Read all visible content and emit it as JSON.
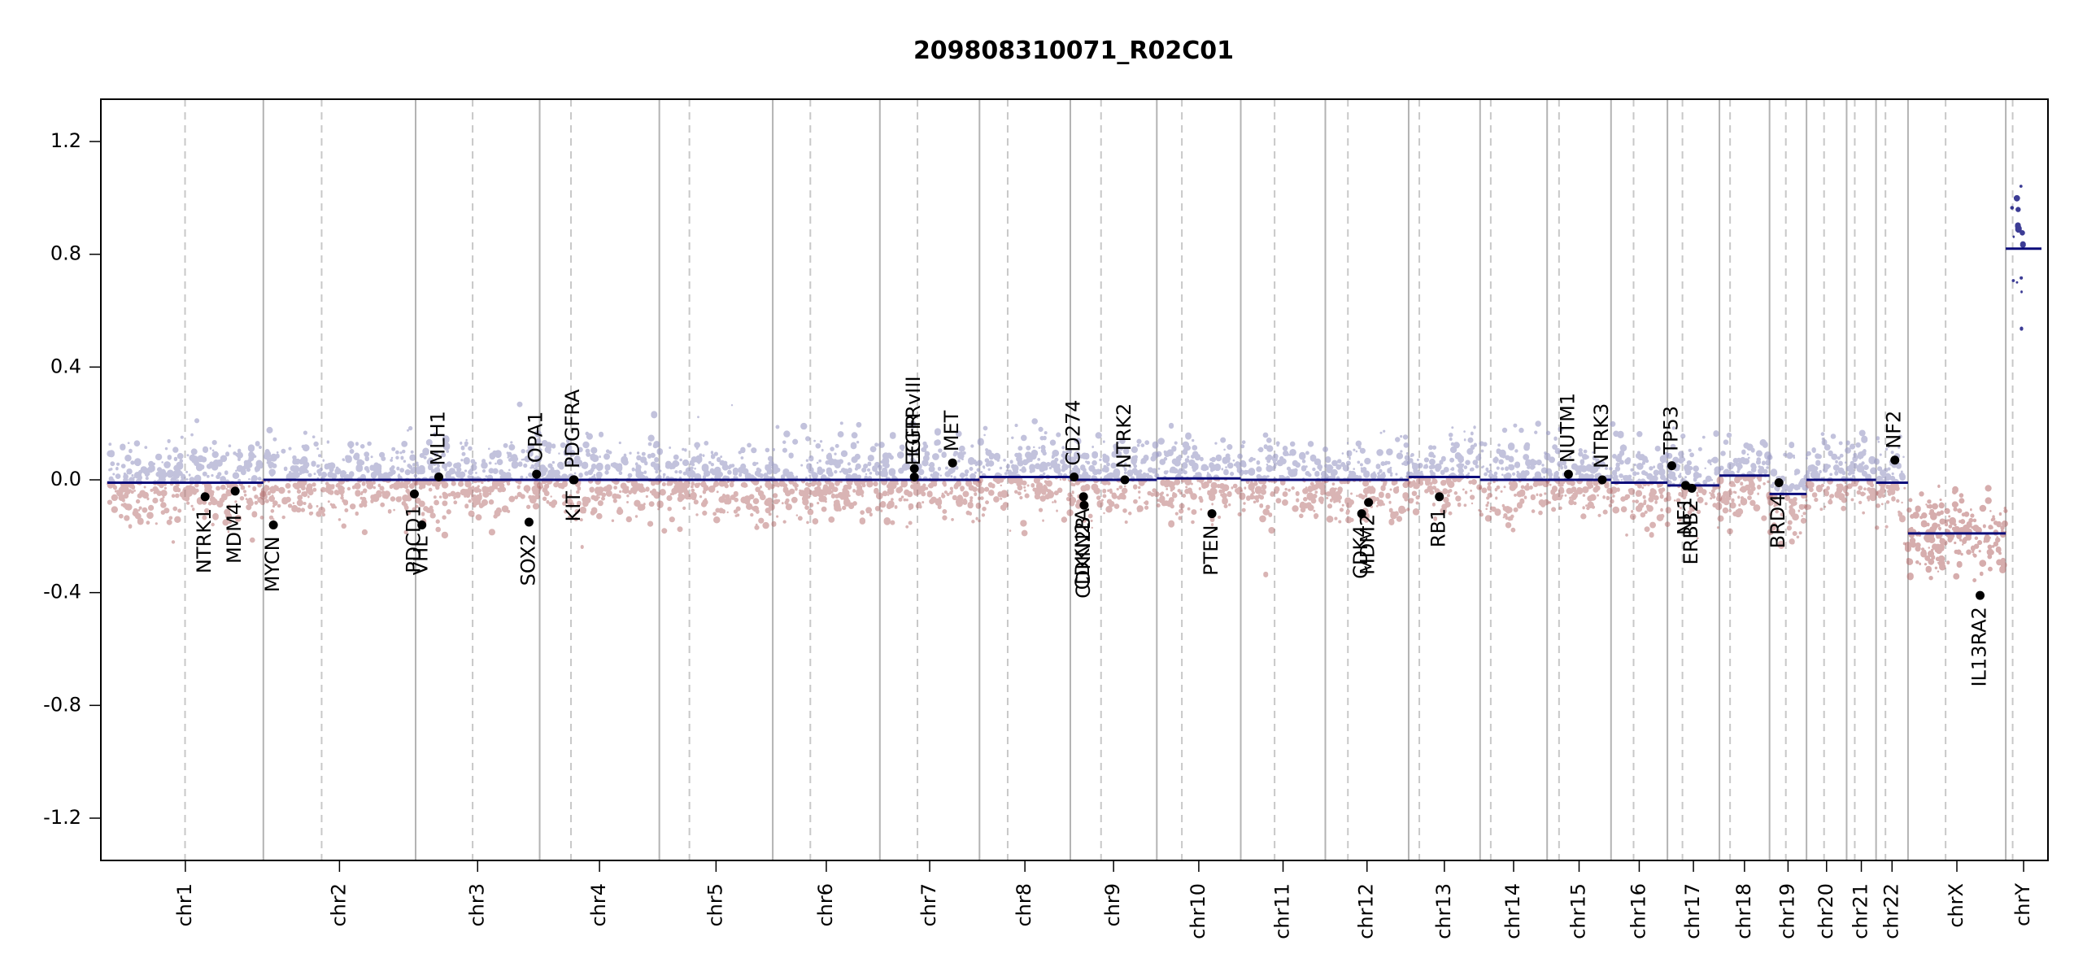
{
  "chart_data": {
    "type": "scatter",
    "title": "209808310071_R02C01",
    "xlabel": "",
    "ylabel": "",
    "ylim": [
      -1.35,
      1.35
    ],
    "yticks": [
      -1.2,
      -0.8,
      -0.4,
      0.0,
      0.4,
      0.8,
      1.2
    ],
    "ytick_labels": [
      "-1.2",
      "-0.8",
      "-0.4",
      "0.0",
      "0.4",
      "0.8",
      "1.2"
    ],
    "chromosomes": [
      {
        "name": "chr1",
        "length": 249,
        "centromere": 124
      },
      {
        "name": "chr2",
        "length": 243,
        "centromere": 93
      },
      {
        "name": "chr3",
        "length": 198,
        "centromere": 91
      },
      {
        "name": "chr4",
        "length": 191,
        "centromere": 50
      },
      {
        "name": "chr5",
        "length": 181,
        "centromere": 48
      },
      {
        "name": "chr6",
        "length": 171,
        "centromere": 60
      },
      {
        "name": "chr7",
        "length": 159,
        "centromere": 60
      },
      {
        "name": "chr8",
        "length": 145,
        "centromere": 45
      },
      {
        "name": "chr9",
        "length": 138,
        "centromere": 49
      },
      {
        "name": "chr10",
        "length": 134,
        "centromere": 40
      },
      {
        "name": "chr11",
        "length": 135,
        "centromere": 54
      },
      {
        "name": "chr12",
        "length": 133,
        "centromere": 36
      },
      {
        "name": "chr13",
        "length": 114,
        "centromere": 17
      },
      {
        "name": "chr14",
        "length": 107,
        "centromere": 17
      },
      {
        "name": "chr15",
        "length": 102,
        "centromere": 19
      },
      {
        "name": "chr16",
        "length": 90,
        "centromere": 36
      },
      {
        "name": "chr17",
        "length": 83,
        "centromere": 24
      },
      {
        "name": "chr18",
        "length": 80,
        "centromere": 17
      },
      {
        "name": "chr19",
        "length": 59,
        "centromere": 26
      },
      {
        "name": "chr20",
        "length": 64,
        "centromere": 28
      },
      {
        "name": "chr21",
        "length": 47,
        "centromere": 13
      },
      {
        "name": "chr22",
        "length": 51,
        "centromere": 15
      },
      {
        "name": "chrX",
        "length": 156,
        "centromere": 60
      },
      {
        "name": "chrY",
        "length": 57,
        "centromere": 11
      }
    ],
    "segments": [
      {
        "chr": "chr1",
        "value": -0.01
      },
      {
        "chr": "chr2",
        "value": 0.0
      },
      {
        "chr": "chr3",
        "value": 0.0
      },
      {
        "chr": "chr4",
        "value": 0.0
      },
      {
        "chr": "chr5",
        "value": 0.0
      },
      {
        "chr": "chr6",
        "value": 0.0
      },
      {
        "chr": "chr7",
        "value": 0.0
      },
      {
        "chr": "chr8",
        "value": 0.01
      },
      {
        "chr": "chr9",
        "value": 0.0
      },
      {
        "chr": "chr10",
        "value": 0.005
      },
      {
        "chr": "chr11",
        "value": 0.0
      },
      {
        "chr": "chr12",
        "value": 0.0
      },
      {
        "chr": "chr13",
        "value": 0.01
      },
      {
        "chr": "chr14",
        "value": 0.0
      },
      {
        "chr": "chr15",
        "value": 0.0
      },
      {
        "chr": "chr16",
        "value": -0.01
      },
      {
        "chr": "chr17",
        "value": -0.02
      },
      {
        "chr": "chr18",
        "value": 0.015
      },
      {
        "chr": "chr19",
        "value": -0.05
      },
      {
        "chr": "chr20",
        "value": 0.0
      },
      {
        "chr": "chr21",
        "value": 0.0
      },
      {
        "chr": "chr22",
        "value": -0.01
      },
      {
        "chrs": [
          "chrX"
        ],
        "value": -0.19
      },
      {
        "chrs": [
          "chrY"
        ],
        "value": 0.82
      }
    ],
    "genes": [
      {
        "name": "NTRK1",
        "chr": "chr1",
        "pos": 156,
        "value": -0.06,
        "label_side": "below"
      },
      {
        "name": "MDM4",
        "chr": "chr1",
        "pos": 204,
        "value": -0.04,
        "label_side": "below"
      },
      {
        "name": "MYCN",
        "chr": "chr2",
        "pos": 16,
        "value": -0.16,
        "label_side": "below"
      },
      {
        "name": "PDCD1",
        "chr": "chr2",
        "pos": 241,
        "value": -0.05,
        "label_side": "below"
      },
      {
        "name": "VHL",
        "chr": "chr3",
        "pos": 10,
        "value": -0.16,
        "label_side": "below"
      },
      {
        "name": "MLH1",
        "chr": "chr3",
        "pos": 37,
        "value": 0.01,
        "label_side": "above"
      },
      {
        "name": "SOX2",
        "chr": "chr3",
        "pos": 181,
        "value": -0.15,
        "label_side": "below"
      },
      {
        "name": "OPA1",
        "chr": "chr3",
        "pos": 193,
        "value": 0.02,
        "label_side": "above"
      },
      {
        "name": "KIT",
        "chr": "chr4",
        "pos": 55,
        "value": 0.0,
        "label_side": "below"
      },
      {
        "name": "PDGFRA",
        "chr": "chr4",
        "pos": 54,
        "value": 0.0,
        "label_side": "above"
      },
      {
        "name": "EGFR",
        "chr": "chr7",
        "pos": 55,
        "value": 0.01,
        "label_side": "above"
      },
      {
        "name": "EGFRvIII",
        "chr": "chr7",
        "pos": 55,
        "value": 0.04,
        "label_side": "above"
      },
      {
        "name": "MET",
        "chr": "chr7",
        "pos": 116,
        "value": 0.06,
        "label_side": "above"
      },
      {
        "name": "CD274",
        "chr": "chr9",
        "pos": 6,
        "value": 0.01,
        "label_side": "above"
      },
      {
        "name": "CDKN2A",
        "chr": "chr9",
        "pos": 21,
        "value": -0.06,
        "label_side": "below"
      },
      {
        "name": "CDKN2B",
        "chr": "chr9",
        "pos": 22,
        "value": -0.09,
        "label_side": "below"
      },
      {
        "name": "NTRK2",
        "chr": "chr9",
        "pos": 87,
        "value": 0.0,
        "label_side": "above"
      },
      {
        "name": "PTEN",
        "chr": "chr10",
        "pos": 88,
        "value": -0.12,
        "label_side": "below"
      },
      {
        "name": "CDK4",
        "chr": "chr12",
        "pos": 58,
        "value": -0.12,
        "label_side": "below"
      },
      {
        "name": "MDM2",
        "chr": "chr12",
        "pos": 69,
        "value": -0.08,
        "label_side": "below"
      },
      {
        "name": "RB1",
        "chr": "chr13",
        "pos": 49,
        "value": -0.06,
        "label_side": "below"
      },
      {
        "name": "NUTM1",
        "chr": "chr15",
        "pos": 34,
        "value": 0.02,
        "label_side": "above"
      },
      {
        "name": "NTRK3",
        "chr": "chr15",
        "pos": 88,
        "value": 0.0,
        "label_side": "above"
      },
      {
        "name": "TP53",
        "chr": "chr17",
        "pos": 7,
        "value": 0.05,
        "label_side": "above"
      },
      {
        "name": "NF1",
        "chr": "chr17",
        "pos": 29,
        "value": -0.02,
        "label_side": "below"
      },
      {
        "name": "ERBB2",
        "chr": "chr17",
        "pos": 39,
        "value": -0.03,
        "label_side": "below"
      },
      {
        "name": "BRD4",
        "chr": "chr19",
        "pos": 15,
        "value": -0.01,
        "label_side": "below"
      },
      {
        "name": "NF2",
        "chr": "chr22",
        "pos": 30,
        "value": 0.07,
        "label_side": "above"
      },
      {
        "name": "IL13RA2",
        "chrs": [
          "chrX"
        ],
        "pos": 115,
        "value": -0.41,
        "label_side": "below"
      }
    ],
    "points_note": "",
    "grid": true,
    "legend": "none"
  },
  "colors": {
    "segment": "#0b0b7a",
    "gain_points": "#9999c4",
    "loss_points": "#b46a6a",
    "gene_marker": "#000000",
    "chr_boundary": "#b3b3b3",
    "centromere": "#c8c8c8"
  }
}
